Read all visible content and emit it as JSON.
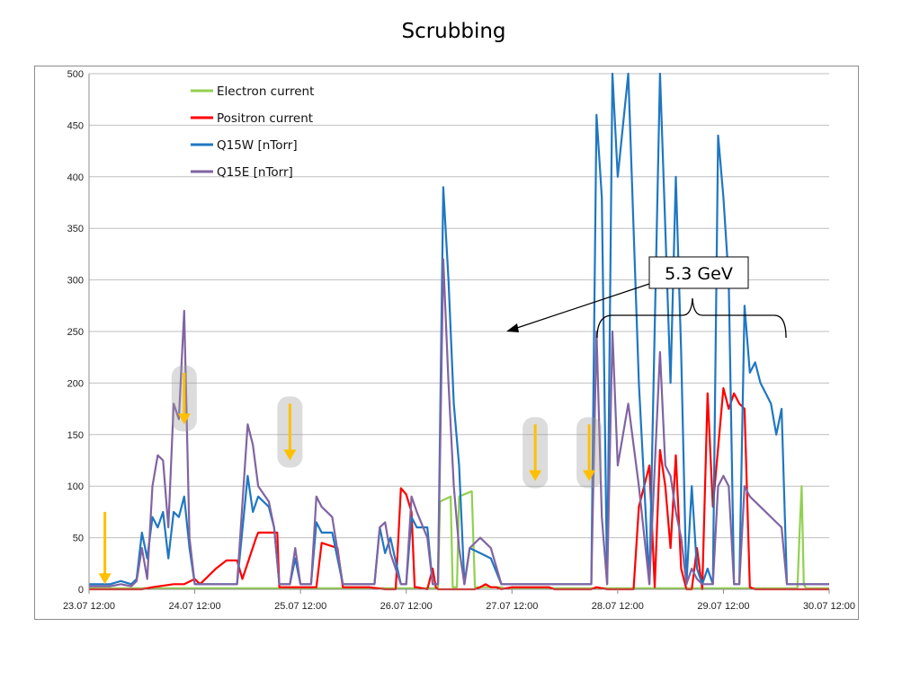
{
  "title": "Scrubbing",
  "colors": {
    "electron": "#92d050",
    "positron": "#ff0000",
    "q15w": "#1f77c2",
    "q15e": "#8064a2",
    "arrow": "#ffc000",
    "grid": "#bfbfbf",
    "axis": "#8c8c8c"
  },
  "callout": {
    "label": "5.3 GeV"
  },
  "chart_data": {
    "type": "line",
    "title": "Scrubbing",
    "xlabel": "",
    "ylabel": "",
    "x_unit": "days since 23.07 12:00",
    "xlim": [
      0,
      7
    ],
    "ylim": [
      0,
      500
    ],
    "grid": true,
    "legend_position": "top-left",
    "x_ticks": [
      "23.07 12:00",
      "24.07 12:00",
      "25.07 12:00",
      "26.07 12:00",
      "27.07 12:00",
      "28.07 12:00",
      "29.07 12:00",
      "30.07 12:00"
    ],
    "y_ticks": [
      0,
      50,
      100,
      150,
      200,
      250,
      300,
      350,
      400,
      450,
      500
    ],
    "series": [
      {
        "name": "Electron current",
        "color": "#92d050",
        "x": [
          0,
          3.3,
          3.32,
          3.42,
          3.44,
          3.48,
          3.5,
          3.62,
          3.65,
          3.9,
          3.92,
          3.95,
          3.98,
          4.0,
          6.7,
          6.72,
          6.74,
          6.76,
          6.78,
          7.0
        ],
        "y": [
          1,
          1,
          85,
          90,
          2,
          2,
          90,
          95,
          2,
          2,
          1,
          1,
          1,
          1,
          1,
          55,
          100,
          5,
          1,
          1
        ]
      },
      {
        "name": "Positron current",
        "color": "#ff0000",
        "x": [
          0,
          0.5,
          0.6,
          0.8,
          0.9,
          1.0,
          1.05,
          1.2,
          1.3,
          1.4,
          1.45,
          1.58,
          1.6,
          1.78,
          1.8,
          1.85,
          1.95,
          2.0,
          2.05,
          2.15,
          2.2,
          2.35,
          2.4,
          2.45,
          2.6,
          2.65,
          2.8,
          2.9,
          2.95,
          3.0,
          3.05,
          3.08,
          3.1,
          3.2,
          3.25,
          3.28,
          3.3,
          3.4,
          3.45,
          3.5,
          3.55,
          3.6,
          3.65,
          3.7,
          3.75,
          3.8,
          3.85,
          3.9,
          4.0,
          4.05,
          4.1,
          4.15,
          4.2,
          4.25,
          4.3,
          4.35,
          4.4,
          4.5,
          4.55,
          4.6,
          4.65,
          4.7,
          4.75,
          4.8,
          4.9,
          4.95,
          5.0,
          5.05,
          5.1,
          5.15,
          5.2,
          5.3,
          5.35,
          5.4,
          5.45,
          5.5,
          5.55,
          5.6,
          5.65,
          5.7,
          5.75,
          5.8,
          5.85,
          5.9,
          6.0,
          6.05,
          6.1,
          6.15,
          6.2,
          6.25,
          6.3,
          6.35,
          6.5,
          6.6,
          6.7,
          6.75,
          6.8,
          7.0
        ],
        "y": [
          0,
          0,
          2,
          5,
          5,
          10,
          5,
          20,
          28,
          28,
          10,
          50,
          55,
          55,
          2,
          2,
          2,
          2,
          2,
          2,
          45,
          40,
          2,
          2,
          2,
          2,
          0,
          0,
          98,
          92,
          75,
          2,
          2,
          0,
          20,
          2,
          0,
          0,
          0,
          0,
          0,
          0,
          0,
          2,
          5,
          2,
          2,
          0,
          2,
          2,
          2,
          2,
          2,
          2,
          2,
          2,
          0,
          0,
          0,
          0,
          0,
          0,
          0,
          2,
          0,
          0,
          0,
          0,
          0,
          0,
          80,
          120,
          2,
          135,
          100,
          40,
          130,
          20,
          0,
          0,
          40,
          0,
          190,
          80,
          195,
          175,
          190,
          180,
          175,
          2,
          0,
          0,
          0,
          0,
          0,
          0,
          0,
          0
        ]
      },
      {
        "name": "Q15W [nTorr]",
        "color": "#1f77c2",
        "x": [
          0,
          0.2,
          0.3,
          0.4,
          0.45,
          0.5,
          0.55,
          0.6,
          0.65,
          0.7,
          0.75,
          0.8,
          0.85,
          0.9,
          0.95,
          1.0,
          1.1,
          1.2,
          1.3,
          1.4,
          1.5,
          1.55,
          1.6,
          1.7,
          1.75,
          1.8,
          1.9,
          1.95,
          2.0,
          2.1,
          2.15,
          2.2,
          2.3,
          2.4,
          2.5,
          2.6,
          2.7,
          2.75,
          2.8,
          2.85,
          2.95,
          3.0,
          3.05,
          3.1,
          3.2,
          3.25,
          3.3,
          3.35,
          3.4,
          3.45,
          3.5,
          3.55,
          3.6,
          3.7,
          3.8,
          3.9,
          4.0,
          4.3,
          4.32,
          4.34,
          4.4,
          4.45,
          4.5,
          4.6,
          4.65,
          4.7,
          4.75,
          4.8,
          4.85,
          4.9,
          4.95,
          5.0,
          5.1,
          5.2,
          5.3,
          5.4,
          5.45,
          5.5,
          5.55,
          5.6,
          5.65,
          5.7,
          5.75,
          5.8,
          5.85,
          5.9,
          5.95,
          6.0,
          6.05,
          6.1,
          6.15,
          6.2,
          6.25,
          6.3,
          6.35,
          6.4,
          6.45,
          6.5,
          6.55,
          6.6,
          6.7,
          6.75,
          6.8,
          6.85,
          6.9,
          7.0
        ],
        "y": [
          5,
          5,
          8,
          5,
          10,
          55,
          30,
          70,
          60,
          75,
          30,
          75,
          70,
          90,
          40,
          5,
          5,
          5,
          5,
          5,
          110,
          75,
          90,
          80,
          60,
          5,
          5,
          30,
          5,
          5,
          65,
          55,
          55,
          5,
          5,
          5,
          5,
          60,
          35,
          50,
          5,
          5,
          70,
          60,
          60,
          5,
          5,
          390,
          300,
          180,
          120,
          5,
          40,
          35,
          30,
          5,
          5,
          5,
          5,
          5,
          5,
          5,
          5,
          5,
          5,
          5,
          5,
          460,
          380,
          5,
          500,
          400,
          500,
          200,
          5,
          500,
          350,
          200,
          400,
          230,
          5,
          100,
          20,
          5,
          20,
          5,
          440,
          380,
          300,
          5,
          5,
          275,
          210,
          220,
          200,
          190,
          180,
          150,
          175,
          5,
          5,
          5,
          5,
          5,
          5,
          5
        ]
      },
      {
        "name": "Q15E [nTorr]",
        "color": "#8064a2",
        "x": [
          0,
          0.2,
          0.3,
          0.4,
          0.45,
          0.5,
          0.55,
          0.6,
          0.65,
          0.7,
          0.75,
          0.8,
          0.85,
          0.9,
          0.95,
          1.0,
          1.1,
          1.2,
          1.3,
          1.4,
          1.5,
          1.55,
          1.6,
          1.7,
          1.75,
          1.8,
          1.9,
          1.95,
          2.0,
          2.1,
          2.15,
          2.2,
          2.3,
          2.4,
          2.5,
          2.6,
          2.7,
          2.75,
          2.8,
          2.85,
          2.95,
          3.0,
          3.05,
          3.1,
          3.2,
          3.25,
          3.3,
          3.35,
          3.4,
          3.45,
          3.5,
          3.55,
          3.6,
          3.7,
          3.8,
          3.9,
          4.0,
          4.3,
          4.32,
          4.34,
          4.4,
          4.45,
          4.5,
          4.6,
          4.65,
          4.7,
          4.75,
          4.8,
          4.85,
          4.9,
          4.95,
          5.0,
          5.1,
          5.2,
          5.3,
          5.4,
          5.45,
          5.5,
          5.55,
          5.6,
          5.65,
          5.7,
          5.75,
          5.8,
          5.85,
          5.9,
          5.95,
          6.0,
          6.05,
          6.1,
          6.15,
          6.2,
          6.25,
          6.3,
          6.35,
          6.4,
          6.45,
          6.5,
          6.55,
          6.6,
          6.7,
          6.75,
          6.8,
          6.85,
          6.9,
          7.0
        ],
        "y": [
          3,
          3,
          5,
          3,
          8,
          40,
          10,
          100,
          130,
          125,
          60,
          180,
          165,
          270,
          50,
          5,
          5,
          5,
          5,
          5,
          160,
          140,
          100,
          85,
          60,
          5,
          5,
          40,
          5,
          5,
          90,
          80,
          70,
          5,
          5,
          5,
          5,
          60,
          65,
          35,
          5,
          5,
          90,
          75,
          50,
          5,
          5,
          320,
          200,
          100,
          40,
          5,
          40,
          50,
          40,
          5,
          5,
          5,
          5,
          5,
          5,
          5,
          5,
          5,
          5,
          5,
          5,
          250,
          70,
          5,
          250,
          120,
          180,
          100,
          5,
          230,
          120,
          110,
          75,
          50,
          5,
          20,
          10,
          5,
          5,
          5,
          100,
          110,
          100,
          5,
          5,
          100,
          90,
          85,
          80,
          75,
          70,
          65,
          60,
          5,
          5,
          5,
          5,
          5,
          5,
          5
        ]
      }
    ]
  }
}
